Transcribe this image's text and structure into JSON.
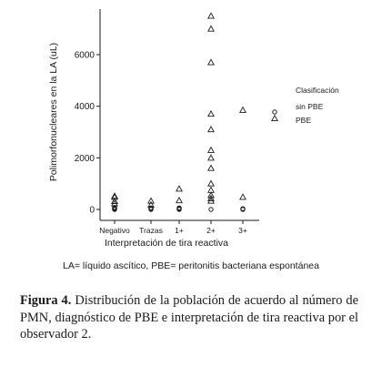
{
  "chart_data": {
    "type": "scatter",
    "xlabel": "Interpretación de tira reactiva",
    "ylabel": "Polimorfonucleares en la LA (uL)",
    "categories": [
      "Negativo",
      "Trazas",
      "1+",
      "2+",
      "3+"
    ],
    "yticks": [
      0,
      2000,
      4000,
      6000
    ],
    "ytick_labels": [
      "0",
      "2000",
      "4000",
      "6000"
    ],
    "ylim": [
      -400,
      7600
    ],
    "grid": false,
    "legend": {
      "title": "Clasificación",
      "placement": "right",
      "entries": [
        {
          "label": "sin PBE",
          "marker": "circle"
        },
        {
          "label": "PBE",
          "marker": "triangle"
        }
      ]
    },
    "series": [
      {
        "name": "sin PBE",
        "marker": "circle",
        "points": [
          {
            "x": "Negativo",
            "y": 0
          },
          {
            "x": "Negativo",
            "y": 20
          },
          {
            "x": "Negativo",
            "y": 40
          },
          {
            "x": "Negativo",
            "y": 60
          },
          {
            "x": "Negativo",
            "y": 80
          },
          {
            "x": "Trazas",
            "y": 0
          },
          {
            "x": "Trazas",
            "y": 30
          },
          {
            "x": "Trazas",
            "y": 60
          },
          {
            "x": "1+",
            "y": 0
          },
          {
            "x": "1+",
            "y": 30
          },
          {
            "x": "1+",
            "y": 60
          },
          {
            "x": "2+",
            "y": 0
          },
          {
            "x": "3+",
            "y": 0
          },
          {
            "x": "3+",
            "y": 30
          }
        ]
      },
      {
        "name": "PBE",
        "marker": "triangle",
        "points": [
          {
            "x": "Negativo",
            "y": 520
          },
          {
            "x": "Negativo",
            "y": 480
          },
          {
            "x": "Negativo",
            "y": 320
          },
          {
            "x": "Negativo",
            "y": 230
          },
          {
            "x": "Trazas",
            "y": 330
          },
          {
            "x": "Trazas",
            "y": 180
          },
          {
            "x": "1+",
            "y": 800
          },
          {
            "x": "1+",
            "y": 350
          },
          {
            "x": "2+",
            "y": 7500
          },
          {
            "x": "2+",
            "y": 7000
          },
          {
            "x": "2+",
            "y": 5700
          },
          {
            "x": "2+",
            "y": 3700
          },
          {
            "x": "2+",
            "y": 3100
          },
          {
            "x": "2+",
            "y": 2300
          },
          {
            "x": "2+",
            "y": 2000
          },
          {
            "x": "2+",
            "y": 1600
          },
          {
            "x": "2+",
            "y": 1000
          },
          {
            "x": "2+",
            "y": 750
          },
          {
            "x": "2+",
            "y": 550
          },
          {
            "x": "2+",
            "y": 430
          },
          {
            "x": "2+",
            "y": 330
          },
          {
            "x": "3+",
            "y": 3850
          },
          {
            "x": "3+",
            "y": 480
          }
        ]
      }
    ]
  },
  "abbreviations": "LA= líquido ascítico, PBE= peritonitis bacteriana espontánea",
  "caption": {
    "label": "Figura 4.",
    "text": "Distribución de la población de acuerdo al número de PMN, diagnóstico de PBE e interpretación de tira reactiva por el observador 2."
  }
}
